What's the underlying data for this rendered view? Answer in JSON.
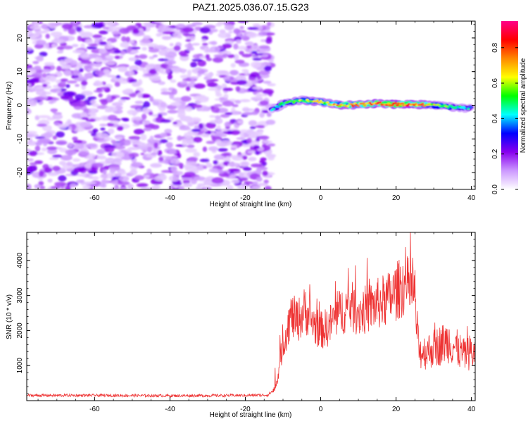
{
  "chart_data": [
    {
      "type": "heatmap",
      "title": "PAZ1.2025.036.07.15.G23",
      "xlabel": "Height of straight line (km)",
      "ylabel": "Frequency (Hz)",
      "xlim": [
        -78,
        41
      ],
      "ylim": [
        -25,
        25
      ],
      "x_ticks": [
        -60,
        -40,
        -20,
        0,
        20,
        40
      ],
      "y_ticks": [
        -20,
        -10,
        0,
        10,
        20
      ],
      "grid": false,
      "colorbar": {
        "label": "Normalized spectral amplitude",
        "range": [
          0,
          0.95
        ],
        "ticks": [
          0.0,
          0.2,
          0.4,
          0.6,
          0.8
        ],
        "colormap": [
          "#ffffff",
          "#cc99ff",
          "#8800ee",
          "#0000ff",
          "#00ffff",
          "#00ff00",
          "#ffff00",
          "#ff8800",
          "#ff0000",
          "#ff0088"
        ]
      },
      "noise_region": {
        "x": [
          -78,
          -13
        ],
        "amplitude": [
          0.05,
          0.25
        ]
      },
      "signal_track": {
        "x": [
          -13,
          -10,
          -5,
          0,
          5,
          10,
          15,
          20,
          25,
          30,
          35,
          40
        ],
        "frequency": [
          -1.5,
          0.5,
          1.5,
          1.0,
          0.0,
          0.2,
          0.5,
          0.3,
          0.3,
          0.0,
          -0.5,
          -1.0
        ],
        "amplitude": [
          0.45,
          0.55,
          0.65,
          0.7,
          0.8,
          0.85,
          0.9,
          0.92,
          0.88,
          0.7,
          0.55,
          0.45
        ]
      }
    },
    {
      "type": "line",
      "xlabel": "Height of straight line (km)",
      "ylabel": "SNR (10 * v/v)",
      "xlim": [
        -78,
        41
      ],
      "ylim": [
        0,
        4800
      ],
      "x_ticks": [
        -60,
        -40,
        -20,
        0,
        20,
        40
      ],
      "y_ticks": [
        1000,
        2000,
        3000,
        4000
      ],
      "grid": false,
      "line_color": "#ee3333",
      "series": [
        {
          "x": [
            -78,
            -60,
            -40,
            -20,
            -14,
            -12,
            -10,
            -8,
            -6,
            -4,
            -2,
            0,
            2,
            4,
            6,
            8,
            10,
            12,
            14,
            16,
            18,
            20,
            22,
            24,
            25,
            26,
            28,
            30,
            32,
            34,
            36,
            38,
            40,
            41
          ],
          "values": [
            150,
            150,
            140,
            150,
            160,
            350,
            1600,
            2400,
            2300,
            2600,
            2200,
            2000,
            2100,
            2400,
            2600,
            2700,
            2500,
            2600,
            2700,
            2800,
            2900,
            3100,
            3300,
            3200,
            3000,
            1400,
            1400,
            1500,
            1600,
            1700,
            1500,
            1300,
            1400,
            1300
          ]
        }
      ]
    }
  ]
}
